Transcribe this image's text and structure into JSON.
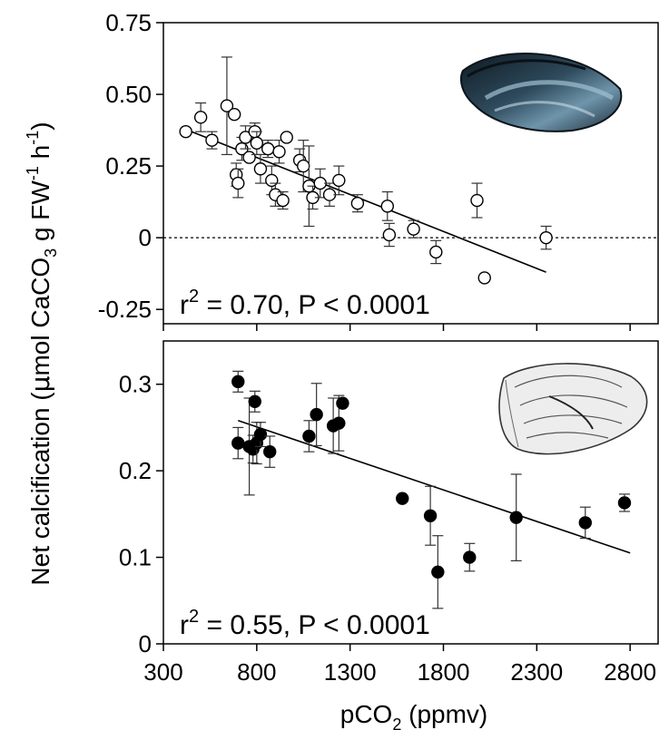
{
  "y_axis_label": {
    "main": "Net calcification (",
    "mu": "μ",
    "mid": "mol CaCO",
    "sub3": "3",
    "mid2": " g FW",
    "sup_fw": "-1",
    "mid3": " h",
    "sup_h": "-1",
    "end": ")"
  },
  "x_axis_label": {
    "main": "pCO",
    "sub": "2",
    "end": " (ppmv)"
  },
  "chart_data": [
    {
      "type": "scatter",
      "panel": "top",
      "organism_icon": "mussel-shell",
      "marker": "open-circle",
      "stat_label": {
        "r": "r",
        "sup": "2",
        "rest": " = 0.70, P < 0.0001"
      },
      "xlim": [
        300,
        2950
      ],
      "ylim": [
        -0.3,
        0.75
      ],
      "yticks": [
        -0.25,
        0,
        0.25,
        0.5,
        0.75
      ],
      "ytick_labels": [
        "-0.25",
        "0",
        "0.25",
        "0.50",
        "0.75"
      ],
      "xticks": [
        300,
        800,
        1300,
        1800,
        2300,
        2800
      ],
      "zero_reference_line": true,
      "regression_line": {
        "x": [
          450,
          2350
        ],
        "y": [
          0.37,
          -0.12
        ]
      },
      "points": [
        {
          "x": 420,
          "y": 0.37,
          "err": 0
        },
        {
          "x": 500,
          "y": 0.42,
          "err": 0.05
        },
        {
          "x": 560,
          "y": 0.34,
          "err": 0.03
        },
        {
          "x": 640,
          "y": 0.46,
          "err": 0.17
        },
        {
          "x": 680,
          "y": 0.43,
          "err": 0
        },
        {
          "x": 690,
          "y": 0.22,
          "err": 0.04
        },
        {
          "x": 700,
          "y": 0.19,
          "err": 0.05
        },
        {
          "x": 720,
          "y": 0.31,
          "err": 0.04
        },
        {
          "x": 740,
          "y": 0.35,
          "err": 0.04
        },
        {
          "x": 760,
          "y": 0.28,
          "err": 0
        },
        {
          "x": 790,
          "y": 0.37,
          "err": 0.03
        },
        {
          "x": 800,
          "y": 0.33,
          "err": 0.04
        },
        {
          "x": 820,
          "y": 0.24,
          "err": 0.05
        },
        {
          "x": 860,
          "y": 0.31,
          "err": 0.03
        },
        {
          "x": 880,
          "y": 0.2,
          "err": 0.05
        },
        {
          "x": 900,
          "y": 0.15,
          "err": 0.04
        },
        {
          "x": 920,
          "y": 0.3,
          "err": 0.04
        },
        {
          "x": 940,
          "y": 0.13,
          "err": 0.03
        },
        {
          "x": 960,
          "y": 0.35,
          "err": 0
        },
        {
          "x": 1030,
          "y": 0.27,
          "err": 0.04
        },
        {
          "x": 1050,
          "y": 0.25,
          "err": 0.09
        },
        {
          "x": 1080,
          "y": 0.18,
          "err": 0.14
        },
        {
          "x": 1100,
          "y": 0.14,
          "err": 0.04
        },
        {
          "x": 1140,
          "y": 0.19,
          "err": 0.05
        },
        {
          "x": 1190,
          "y": 0.15,
          "err": 0.04
        },
        {
          "x": 1240,
          "y": 0.2,
          "err": 0.05
        },
        {
          "x": 1340,
          "y": 0.12,
          "err": 0.03
        },
        {
          "x": 1500,
          "y": 0.11,
          "err": 0.05
        },
        {
          "x": 1510,
          "y": 0.01,
          "err": 0.04
        },
        {
          "x": 1640,
          "y": 0.03,
          "err": 0.03
        },
        {
          "x": 1760,
          "y": -0.05,
          "err": 0.04
        },
        {
          "x": 1980,
          "y": 0.13,
          "err": 0.06
        },
        {
          "x": 2020,
          "y": -0.14,
          "err": 0
        },
        {
          "x": 2350,
          "y": 0,
          "err": 0.04
        }
      ]
    },
    {
      "type": "scatter",
      "panel": "bottom",
      "organism_icon": "oyster-shell",
      "marker": "filled-circle",
      "stat_label": {
        "r": "r",
        "sup": "2",
        "rest": " = 0.55, P < 0.0001"
      },
      "xlim": [
        300,
        2950
      ],
      "ylim": [
        0,
        0.35
      ],
      "yticks": [
        0,
        0.1,
        0.2,
        0.3
      ],
      "ytick_labels": [
        "0",
        "0.1",
        "0.2",
        "0.3"
      ],
      "xticks": [
        300,
        800,
        1300,
        1800,
        2300,
        2800
      ],
      "xtick_labels": [
        "300",
        "800",
        "1300",
        "1800",
        "2300",
        "2800"
      ],
      "regression_line": {
        "x": [
          700,
          2800
        ],
        "y": [
          0.258,
          0.105
        ]
      },
      "points": [
        {
          "x": 700,
          "y": 0.303,
          "err": 0.012
        },
        {
          "x": 700,
          "y": 0.232,
          "err": 0.018
        },
        {
          "x": 760,
          "y": 0.228,
          "err": 0.056
        },
        {
          "x": 780,
          "y": 0.225,
          "err": 0.016
        },
        {
          "x": 790,
          "y": 0.28,
          "err": 0.012
        },
        {
          "x": 800,
          "y": 0.232,
          "err": 0.024
        },
        {
          "x": 820,
          "y": 0.242,
          "err": 0.014
        },
        {
          "x": 870,
          "y": 0.222,
          "err": 0.018
        },
        {
          "x": 1080,
          "y": 0.24,
          "err": 0.018
        },
        {
          "x": 1120,
          "y": 0.265,
          "err": 0.036
        },
        {
          "x": 1210,
          "y": 0.252,
          "err": 0.032
        },
        {
          "x": 1240,
          "y": 0.255,
          "err": 0.032
        },
        {
          "x": 1260,
          "y": 0.278,
          "err": 0
        },
        {
          "x": 1580,
          "y": 0.168,
          "err": 0
        },
        {
          "x": 1730,
          "y": 0.148,
          "err": 0.034
        },
        {
          "x": 1770,
          "y": 0.083,
          "err": 0.042
        },
        {
          "x": 1940,
          "y": 0.1,
          "err": 0.016
        },
        {
          "x": 2190,
          "y": 0.146,
          "err": 0.05
        },
        {
          "x": 2560,
          "y": 0.14,
          "err": 0.018
        },
        {
          "x": 2770,
          "y": 0.163,
          "err": 0.01
        }
      ]
    }
  ]
}
